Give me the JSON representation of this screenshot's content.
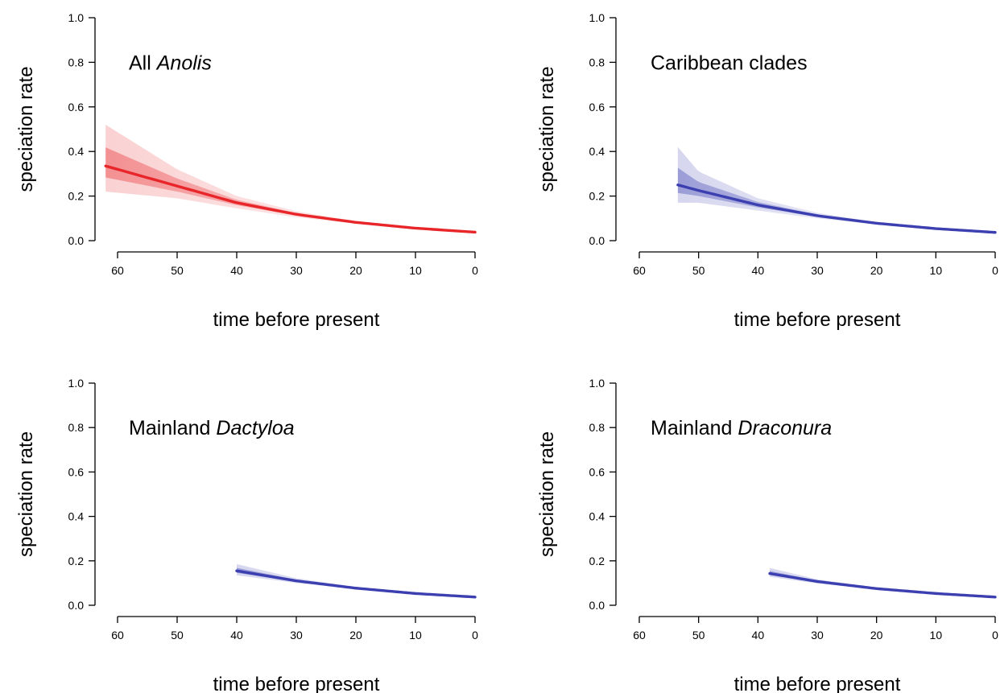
{
  "chart_data": [
    {
      "type": "line",
      "title": "All ",
      "title_italic": "Anolis",
      "xlabel": "time before present",
      "ylabel": "speciation rate",
      "xlim": [
        62,
        0
      ],
      "ylim": [
        0,
        1.0
      ],
      "x_ticks": [
        60,
        50,
        40,
        30,
        20,
        10,
        0
      ],
      "y_ticks": [
        "0.0",
        "0.2",
        "0.4",
        "0.6",
        "0.8",
        "1.0"
      ],
      "color": "#e8262a",
      "series": [
        {
          "x": [
            62,
            50,
            40,
            30,
            20,
            10,
            0
          ],
          "values": [
            0.335,
            0.245,
            0.17,
            0.118,
            0.082,
            0.056,
            0.038
          ]
        }
      ],
      "uncertainty": {
        "x": [
          62,
          50,
          40,
          30,
          20,
          10,
          0
        ],
        "lower": [
          0.22,
          0.19,
          0.145,
          0.105,
          0.076,
          0.053,
          0.036
        ],
        "upper": [
          0.52,
          0.32,
          0.2,
          0.132,
          0.088,
          0.059,
          0.04
        ]
      }
    },
    {
      "type": "line",
      "title": "Caribbean clades",
      "title_italic": "",
      "xlabel": "time before present",
      "ylabel": "speciation rate",
      "xlim": [
        62,
        0
      ],
      "ylim": [
        0,
        1.0
      ],
      "x_ticks": [
        60,
        50,
        40,
        30,
        20,
        10,
        0
      ],
      "y_ticks": [
        "0.0",
        "0.2",
        "0.4",
        "0.6",
        "0.8",
        "1.0"
      ],
      "color": "#3b3fb0",
      "series": [
        {
          "x": [
            53.5,
            50,
            40,
            30,
            20,
            10,
            0
          ],
          "values": [
            0.25,
            0.225,
            0.16,
            0.112,
            0.078,
            0.054,
            0.037
          ]
        }
      ],
      "uncertainty": {
        "x": [
          53.5,
          50,
          40,
          30,
          20,
          10,
          0
        ],
        "lower": [
          0.17,
          0.17,
          0.135,
          0.1,
          0.073,
          0.052,
          0.036
        ],
        "upper": [
          0.42,
          0.31,
          0.19,
          0.125,
          0.083,
          0.056,
          0.039
        ]
      }
    },
    {
      "type": "line",
      "title": "Mainland ",
      "title_italic": "Dactyloa",
      "xlabel": "time before present",
      "ylabel": "speciation rate",
      "xlim": [
        62,
        0
      ],
      "ylim": [
        0,
        1.0
      ],
      "x_ticks": [
        60,
        50,
        40,
        30,
        20,
        10,
        0
      ],
      "y_ticks": [
        "0.0",
        "0.2",
        "0.4",
        "0.6",
        "0.8",
        "1.0"
      ],
      "color": "#3b3fb0",
      "series": [
        {
          "x": [
            40,
            30,
            20,
            10,
            0
          ],
          "values": [
            0.155,
            0.11,
            0.077,
            0.053,
            0.037
          ]
        }
      ],
      "uncertainty": {
        "x": [
          40,
          30,
          20,
          10,
          0
        ],
        "lower": [
          0.135,
          0.1,
          0.073,
          0.051,
          0.036
        ],
        "upper": [
          0.185,
          0.122,
          0.082,
          0.056,
          0.038
        ]
      }
    },
    {
      "type": "line",
      "title": "Mainland ",
      "title_italic": "Draconura",
      "xlabel": "time before present",
      "ylabel": "speciation rate",
      "xlim": [
        62,
        0
      ],
      "ylim": [
        0,
        1.0
      ],
      "x_ticks": [
        60,
        50,
        40,
        30,
        20,
        10,
        0
      ],
      "y_ticks": [
        "0.0",
        "0.2",
        "0.4",
        "0.6",
        "0.8",
        "1.0"
      ],
      "color": "#3b3fb0",
      "series": [
        {
          "x": [
            38,
            30,
            20,
            10,
            0
          ],
          "values": [
            0.143,
            0.107,
            0.075,
            0.053,
            0.037
          ]
        }
      ],
      "uncertainty": {
        "x": [
          38,
          30,
          20,
          10,
          0
        ],
        "lower": [
          0.128,
          0.098,
          0.071,
          0.051,
          0.036
        ],
        "upper": [
          0.168,
          0.117,
          0.08,
          0.055,
          0.038
        ]
      }
    }
  ]
}
